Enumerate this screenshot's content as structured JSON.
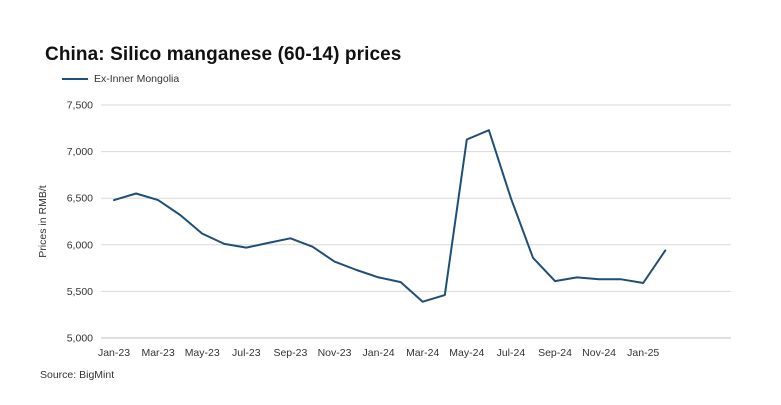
{
  "chart_data": {
    "type": "line",
    "title": "China: Silico manganese (60-14) prices",
    "ylabel": "Prices in RMB/t",
    "xlabel": "",
    "source": "Source: BigMint",
    "ylim": [
      5000,
      7500
    ],
    "yticks": [
      "5,000",
      "5,500",
      "6,000",
      "6,500",
      "7,000",
      "7,500"
    ],
    "ytick_values": [
      5000,
      5500,
      6000,
      6500,
      7000,
      7500
    ],
    "xtick_labels": [
      "Jan-23",
      "Mar-23",
      "May-23",
      "Jul-23",
      "Sep-23",
      "Nov-23",
      "Jan-24",
      "Mar-24",
      "May-24",
      "Jul-24",
      "Sep-24",
      "Nov-24",
      "Jan-25"
    ],
    "legend_position": "top-left",
    "grid": "horizontal",
    "x": [
      "Jan-23",
      "Feb-23",
      "Mar-23",
      "Apr-23",
      "May-23",
      "Jun-23",
      "Jul-23",
      "Aug-23",
      "Sep-23",
      "Oct-23",
      "Nov-23",
      "Dec-23",
      "Jan-24",
      "Feb-24",
      "Mar-24",
      "Apr-24",
      "May-24",
      "Jun-24",
      "Jul-24",
      "Aug-24",
      "Sep-24",
      "Oct-24",
      "Nov-24",
      "Dec-24",
      "Jan-25",
      "Feb-25"
    ],
    "series": [
      {
        "name": "Ex-Inner Mongolia",
        "color": "#1f4e79",
        "values": [
          6480,
          6550,
          6480,
          6320,
          6120,
          6010,
          5970,
          6020,
          6070,
          5980,
          5820,
          5730,
          5650,
          5600,
          5390,
          5460,
          7130,
          7230,
          6500,
          5860,
          5610,
          5650,
          5630,
          5630,
          5590,
          5940
        ]
      }
    ]
  }
}
